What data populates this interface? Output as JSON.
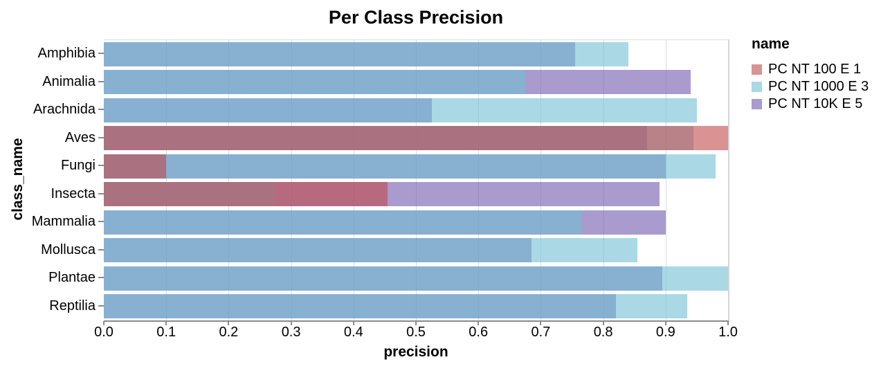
{
  "title": "Per Class Precision",
  "axes": {
    "x_label": "precision",
    "y_label": "class_name",
    "x_ticks": [
      "0.0",
      "0.1",
      "0.2",
      "0.3",
      "0.4",
      "0.5",
      "0.6",
      "0.7",
      "0.8",
      "0.9",
      "1.0"
    ]
  },
  "legend": {
    "title": "name",
    "entries": [
      {
        "label": "PC NT 100 E 1",
        "color": "#da9292"
      },
      {
        "label": "PC NT 1000 E 3",
        "color": "#aad8e5"
      },
      {
        "label": "PC NT 10K E 5",
        "color": "#a99bce"
      }
    ]
  },
  "chart_data": {
    "type": "bar",
    "orientation": "horizontal",
    "title": "Per Class Precision",
    "xlabel": "precision",
    "ylabel": "class_name",
    "xlim": [
      0,
      1
    ],
    "grid": true,
    "legend_position": "right",
    "bar_opacity": 0.6,
    "layer_order_bottom_to_top": [
      "PC NT 10K E 5",
      "PC NT 1000 E 3",
      "PC NT 100 E 1"
    ],
    "categories": [
      "Amphibia",
      "Animalia",
      "Arachnida",
      "Aves",
      "Fungi",
      "Insecta",
      "Mammalia",
      "Mollusca",
      "Plantae",
      "Reptilia"
    ],
    "series": [
      {
        "name": "PC NT 100 E 1",
        "base_color": "#c14949",
        "rendered_color": "#da9292",
        "values": [
          null,
          null,
          null,
          1.0,
          0.1,
          0.455,
          null,
          null,
          null,
          null
        ]
      },
      {
        "name": "PC NT 1000 E 3",
        "base_color": "#71bed4",
        "rendered_color": "#aad8e5",
        "values": [
          0.84,
          0.675,
          0.95,
          0.945,
          0.98,
          0.275,
          0.765,
          0.855,
          1.0,
          0.935
        ]
      },
      {
        "name": "PC NT 10K E 5",
        "base_color": "#7058ad",
        "rendered_color": "#a99bce",
        "values": [
          0.755,
          0.94,
          0.525,
          0.87,
          0.9,
          0.89,
          0.9,
          0.685,
          0.895,
          0.82
        ]
      }
    ]
  }
}
